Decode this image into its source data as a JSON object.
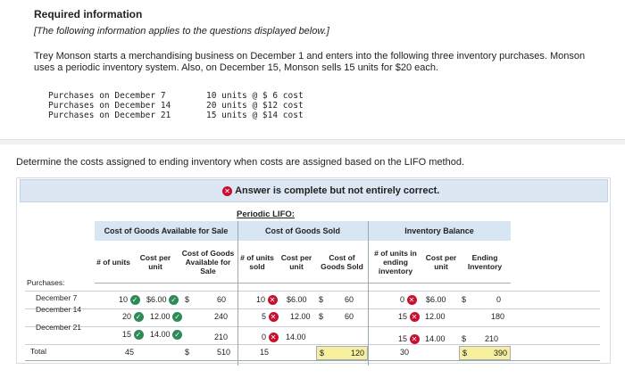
{
  "header": {
    "title": "Required information",
    "note": "[The following information applies to the questions displayed below.]"
  },
  "problem": {
    "text": "Trey Monson starts a merchandising business on December 1 and enters into the following three inventory purchases. Monson uses a periodic inventory system. Also, on December 15, Monson sells 15 units for $20 each.",
    "purchases": [
      {
        "label": "Purchases on December 7",
        "detail": "10 units @ $ 6 cost"
      },
      {
        "label": "Purchases on December 14",
        "detail": "20 units @ $12 cost"
      },
      {
        "label": "Purchases on December 21",
        "detail": "15 units @ $14 cost"
      }
    ]
  },
  "question": "Determine the costs assigned to ending inventory when costs are assigned based on the LIFO method.",
  "feedback": {
    "status": "Answer is complete but not entirely correct."
  },
  "table": {
    "method_title": "Periodic LIFO:",
    "sections": {
      "cogas": "Cost of Goods Available for Sale",
      "cogs": "Cost of Goods Sold",
      "ending": "Inventory Balance"
    },
    "columns": {
      "units": "# of units",
      "cost_per_unit": "Cost per unit",
      "cogas_value": "Cost of Goods Available for Sale",
      "units_sold": "# of units sold",
      "cost_per_unit_sold": "Cost per unit",
      "cogs_value": "Cost of Goods Sold",
      "units_ending": "# of units in ending inventory",
      "cost_per_unit_ending": "Cost per unit",
      "ending_value": "Ending Inventory"
    },
    "purchases_label": "Purchases:",
    "rows": [
      {
        "label": "December 7",
        "units": "10",
        "cost": "$6.00",
        "cogas": "60",
        "sold": "10",
        "sold_cost": "$6.00",
        "cogs": "60",
        "end_units": "0",
        "end_cost": "$6.00",
        "end_value": "0"
      },
      {
        "label": "December 14",
        "units": "20",
        "cost": "12.00",
        "cogas": "240",
        "sold": "5",
        "sold_cost": "12.00",
        "cogs": "60",
        "end_units": "15",
        "end_cost": "12.00",
        "end_value": "180"
      },
      {
        "label": "December 21",
        "units": "15",
        "cost": "14.00",
        "cogas": "210",
        "sold": "0",
        "sold_cost": "14.00",
        "cogs": "",
        "end_units": "15",
        "end_cost": "14.00",
        "end_value": "210"
      }
    ],
    "total": {
      "label": "Total",
      "units": "45",
      "cogas": "510",
      "sold": "15",
      "cogs": "120",
      "end_units": "30",
      "end_value": "390"
    },
    "currency": "$"
  },
  "colors": {
    "accent": "#d7e6f2",
    "incorrect": "#c8102e",
    "correct": "#2e8b57",
    "total_highlight": "#f6ef9e"
  }
}
